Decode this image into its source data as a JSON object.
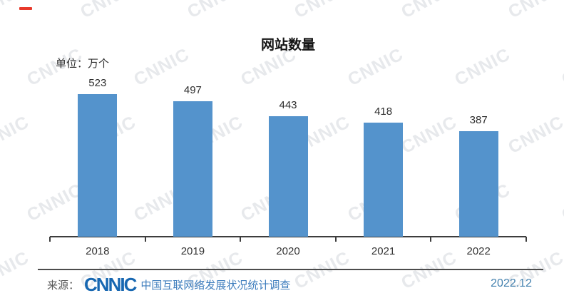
{
  "title": "网站数量",
  "unit_label": "单位：万个",
  "watermark": {
    "text": "CNNIC",
    "color": "#E7E9EC"
  },
  "decor": {
    "top_left_dash_color": "#E8392B"
  },
  "chart_data": {
    "type": "bar",
    "title": "网站数量",
    "unit": "万个",
    "categories": [
      "2018",
      "2019",
      "2020",
      "2021",
      "2022"
    ],
    "values": [
      523,
      497,
      443,
      418,
      387
    ],
    "bar_color": "#5493CC",
    "value_labels_shown": true,
    "ylim": [
      0,
      560
    ],
    "grid": false,
    "legend": false,
    "xlabel": "",
    "ylabel": "单位：万个"
  },
  "footer": {
    "source_prefix": "来源：",
    "logo_text": "CNNIC",
    "source_name": "中国互联网络发展状况统计调查",
    "date": "2022.12",
    "prefix_color": "#5A5A5A",
    "logo_color": "#1767B1",
    "text_color": "#3E7DBD",
    "date_color": "#4280AE"
  }
}
